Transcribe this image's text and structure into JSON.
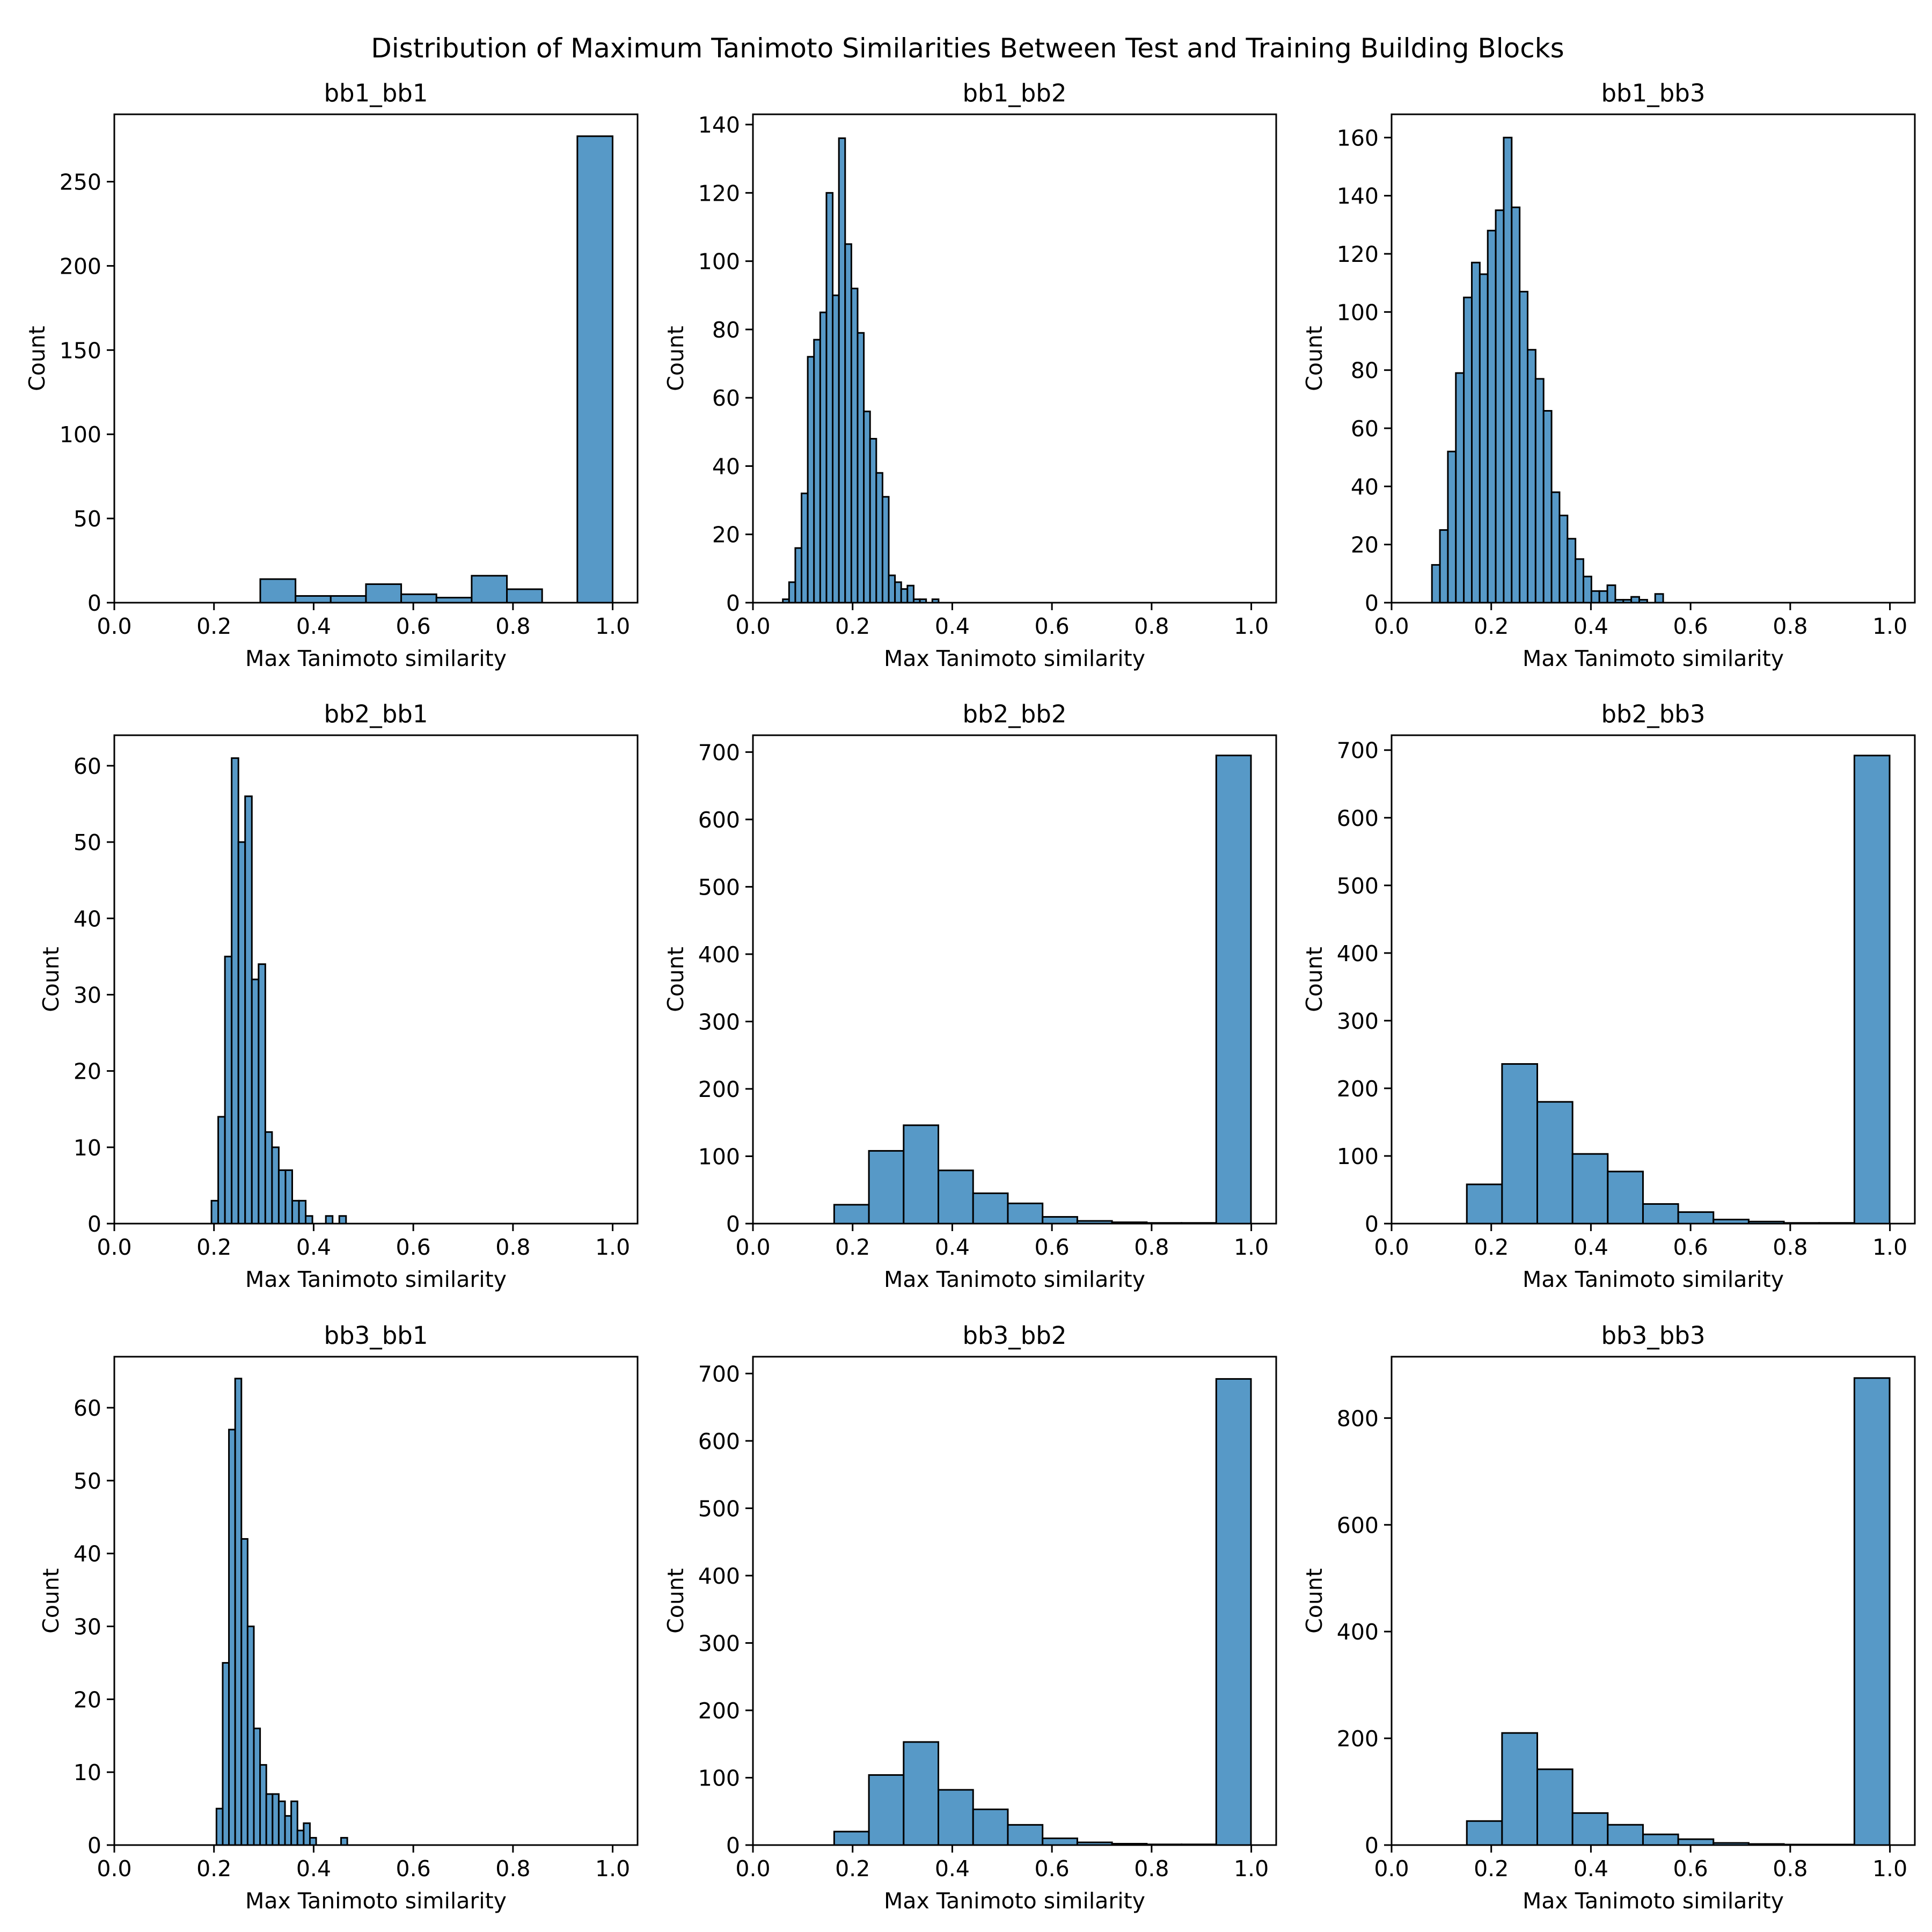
{
  "figure_title": "Distribution of Maximum Tanimoto Similarities Between Test and Training Building Blocks",
  "colors": {
    "bar_fill": "#5799C7",
    "bar_edge": "#000000",
    "axes": "#000000"
  },
  "chart_data": [
    {
      "type": "bar",
      "title": "bb1_bb1",
      "xlabel": "Max Tanimoto similarity",
      "ylabel": "Count",
      "xlim": [
        0.0,
        1.05
      ],
      "ylim": [
        0,
        290
      ],
      "xticks": [
        "0.0",
        "0.2",
        "0.4",
        "0.6",
        "0.8",
        "1.0"
      ],
      "yticks": [
        0,
        50,
        100,
        150,
        200,
        250
      ],
      "bin_start": 0.2929,
      "bin_width": 0.0707,
      "values": [
        14,
        4,
        4,
        11,
        5,
        3,
        16,
        8,
        0,
        277
      ]
    },
    {
      "type": "bar",
      "title": "bb1_bb2",
      "xlabel": "Max Tanimoto similarity",
      "ylabel": "Count",
      "xlim": [
        0.0,
        1.05
      ],
      "ylim": [
        0,
        143
      ],
      "xticks": [
        "0.0",
        "0.2",
        "0.4",
        "0.6",
        "0.8",
        "1.0"
      ],
      "yticks": [
        0,
        20,
        40,
        60,
        80,
        100,
        120,
        140
      ],
      "bin_start": 0.06,
      "bin_width": 0.0125,
      "values": [
        1,
        6,
        16,
        32,
        72,
        77,
        85,
        120,
        90,
        136,
        105,
        92,
        79,
        56,
        48,
        38,
        31,
        8,
        6,
        4,
        5,
        1,
        1,
        0,
        1
      ]
    },
    {
      "type": "bar",
      "title": "bb1_bb3",
      "xlabel": "Max Tanimoto similarity",
      "ylabel": "Count",
      "xlim": [
        0.0,
        1.05
      ],
      "ylim": [
        0,
        168
      ],
      "xticks": [
        "0.0",
        "0.2",
        "0.4",
        "0.6",
        "0.8",
        "1.0"
      ],
      "yticks": [
        0,
        20,
        40,
        60,
        80,
        100,
        120,
        140,
        160
      ],
      "bin_start": 0.081,
      "bin_width": 0.016,
      "values": [
        13,
        25,
        52,
        79,
        105,
        117,
        113,
        128,
        135,
        160,
        136,
        107,
        87,
        77,
        66,
        38,
        30,
        22,
        15,
        9,
        4,
        4,
        6,
        1,
        1,
        2,
        1,
        0,
        3
      ]
    },
    {
      "type": "bar",
      "title": "bb2_bb1",
      "xlabel": "Max Tanimoto similarity",
      "ylabel": "Count",
      "xlim": [
        0.0,
        1.05
      ],
      "ylim": [
        0,
        64
      ],
      "xticks": [
        "0.0",
        "0.2",
        "0.4",
        "0.6",
        "0.8",
        "1.0"
      ],
      "yticks": [
        0,
        10,
        20,
        30,
        40,
        50,
        60
      ],
      "bin_start": 0.195,
      "bin_width": 0.0135,
      "values": [
        3,
        14,
        35,
        61,
        50,
        56,
        32,
        34,
        12,
        10,
        7,
        7,
        3,
        3,
        1,
        0,
        0,
        1,
        0,
        1
      ]
    },
    {
      "type": "bar",
      "title": "bb2_bb2",
      "xlabel": "Max Tanimoto similarity",
      "ylabel": "Count",
      "xlim": [
        0.0,
        1.05
      ],
      "ylim": [
        0,
        725
      ],
      "xticks": [
        "0.0",
        "0.2",
        "0.4",
        "0.6",
        "0.8",
        "1.0"
      ],
      "yticks": [
        0,
        100,
        200,
        300,
        400,
        500,
        600,
        700
      ],
      "bin_start": 0.163,
      "bin_width": 0.0697,
      "values": [
        28,
        108,
        146,
        79,
        45,
        30,
        10,
        4,
        2,
        1,
        1,
        695
      ]
    },
    {
      "type": "bar",
      "title": "bb2_bb3",
      "xlabel": "Max Tanimoto similarity",
      "ylabel": "Count",
      "xlim": [
        0.0,
        1.05
      ],
      "ylim": [
        0,
        722
      ],
      "xticks": [
        "0.0",
        "0.2",
        "0.4",
        "0.6",
        "0.8",
        "1.0"
      ],
      "yticks": [
        0,
        100,
        200,
        300,
        400,
        500,
        600,
        700
      ],
      "bin_start": 0.151,
      "bin_width": 0.0707,
      "values": [
        58,
        236,
        180,
        103,
        77,
        29,
        17,
        6,
        3,
        1,
        1,
        692
      ]
    },
    {
      "type": "bar",
      "title": "bb3_bb1",
      "xlabel": "Max Tanimoto similarity",
      "ylabel": "Count",
      "xlim": [
        0.0,
        1.05
      ],
      "ylim": [
        0,
        67
      ],
      "xticks": [
        "0.0",
        "0.2",
        "0.4",
        "0.6",
        "0.8",
        "1.0"
      ],
      "yticks": [
        0,
        10,
        20,
        30,
        40,
        50,
        60
      ],
      "bin_start": 0.205,
      "bin_width": 0.0125,
      "values": [
        5,
        25,
        57,
        64,
        42,
        30,
        16,
        11,
        7,
        7,
        6,
        4,
        6,
        2,
        3,
        1,
        0,
        0,
        0,
        0,
        1
      ]
    },
    {
      "type": "bar",
      "title": "bb3_bb2",
      "xlabel": "Max Tanimoto similarity",
      "ylabel": "Count",
      "xlim": [
        0.0,
        1.05
      ],
      "ylim": [
        0,
        725
      ],
      "xticks": [
        "0.0",
        "0.2",
        "0.4",
        "0.6",
        "0.8",
        "1.0"
      ],
      "yticks": [
        0,
        100,
        200,
        300,
        400,
        500,
        600,
        700
      ],
      "bin_start": 0.163,
      "bin_width": 0.0697,
      "values": [
        20,
        104,
        153,
        82,
        53,
        30,
        10,
        4,
        2,
        1,
        1,
        692
      ]
    },
    {
      "type": "bar",
      "title": "bb3_bb3",
      "xlabel": "Max Tanimoto similarity",
      "ylabel": "Count",
      "xlim": [
        0.0,
        1.05
      ],
      "ylim": [
        0,
        915
      ],
      "xticks": [
        "0.0",
        "0.2",
        "0.4",
        "0.6",
        "0.8",
        "1.0"
      ],
      "yticks": [
        0,
        200,
        400,
        600,
        800
      ],
      "bin_start": 0.151,
      "bin_width": 0.0707,
      "values": [
        45,
        210,
        142,
        60,
        38,
        20,
        11,
        4,
        2,
        1,
        1,
        875
      ]
    }
  ]
}
